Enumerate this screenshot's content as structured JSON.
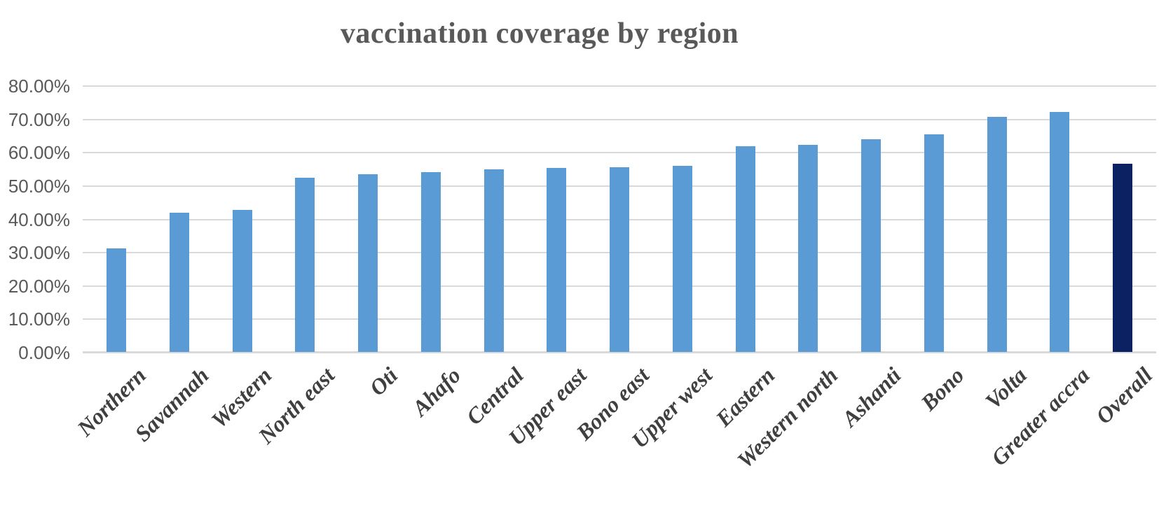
{
  "page": {
    "background": "#FFFFFF"
  },
  "chart_data": {
    "type": "bar",
    "title": "vaccination coverage by region",
    "categories": [
      "Northern",
      "Savannah",
      "Western",
      "North east",
      "Oti",
      "Ahafo",
      "Central",
      "Upper east",
      "Bono east",
      "Upper west",
      "Eastern",
      "Western north",
      "Ashanti",
      "Bono",
      "Volta",
      "Greater accra",
      "Overall"
    ],
    "values": [
      31.1,
      41.8,
      42.6,
      52.3,
      53.3,
      53.9,
      54.9,
      55.3,
      55.5,
      55.9,
      61.8,
      62.1,
      63.8,
      65.3,
      70.6,
      72.0,
      56.4
    ],
    "value_unit": "%",
    "ylim": [
      0,
      80
    ],
    "yticks": [
      {
        "value": 0,
        "label": "0.00%"
      },
      {
        "value": 10,
        "label": "10.00%"
      },
      {
        "value": 20,
        "label": "20.00%"
      },
      {
        "value": 30,
        "label": "30.00%"
      },
      {
        "value": 40,
        "label": "40.00%"
      },
      {
        "value": 50,
        "label": "50.00%"
      },
      {
        "value": 60,
        "label": "60.00%"
      },
      {
        "value": 70,
        "label": "70.00%"
      },
      {
        "value": 80,
        "label": "80.00%"
      }
    ],
    "xlabel": "",
    "ylabel": "",
    "grid": true,
    "legend": false,
    "colors": {
      "bar": "#5B9BD5",
      "overall_bar": "#0C2161",
      "gridline": "#D9D9D9",
      "axis_line": "#D9D9D9",
      "title_text": "#595959",
      "tick_text": "#595959",
      "category_text": "#3F3F3F"
    },
    "overall_index": 16
  }
}
